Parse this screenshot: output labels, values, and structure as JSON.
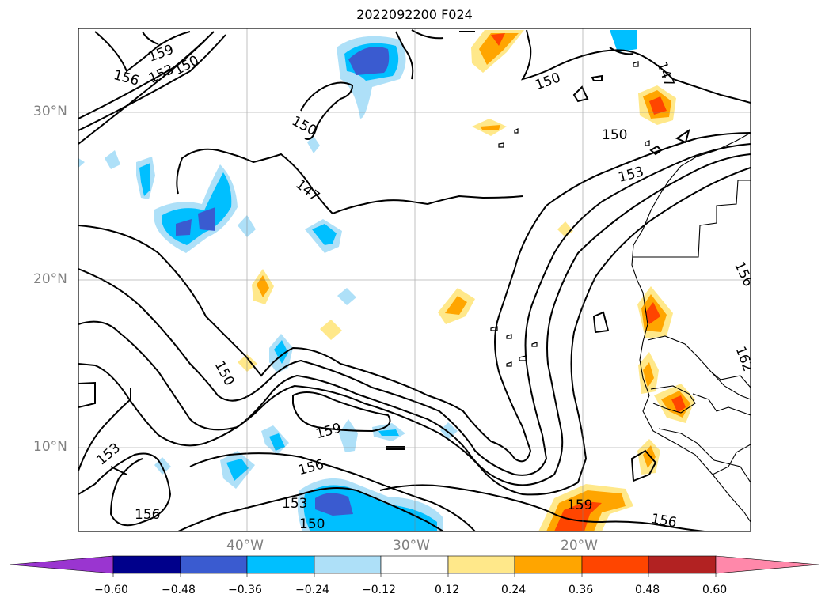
{
  "title": "2022092200 F024",
  "lat_labels": [
    "30°N",
    "20°N",
    "10°N"
  ],
  "lon_labels": [
    "40°W",
    "30°W",
    "20°W"
  ],
  "contour_labels": [
    "159",
    "153",
    "150",
    "156",
    "150",
    "147",
    "150",
    "150",
    "147",
    "153",
    "156",
    "162",
    "150",
    "153",
    "159",
    "156",
    "153",
    "150",
    "156",
    "159",
    "156"
  ],
  "colorbar": {
    "ticks": [
      "−0.60",
      "−0.48",
      "−0.36",
      "−0.24",
      "−0.12",
      "0.12",
      "0.24",
      "0.36",
      "0.48",
      "0.60"
    ],
    "colors": [
      "#9a35d0",
      "#00008b",
      "#3a5bd0",
      "#00bfff",
      "#aee0f8",
      "#ffffff",
      "#ffe88a",
      "#ffa500",
      "#ff4500",
      "#b22222",
      "#ff88aa"
    ]
  }
}
